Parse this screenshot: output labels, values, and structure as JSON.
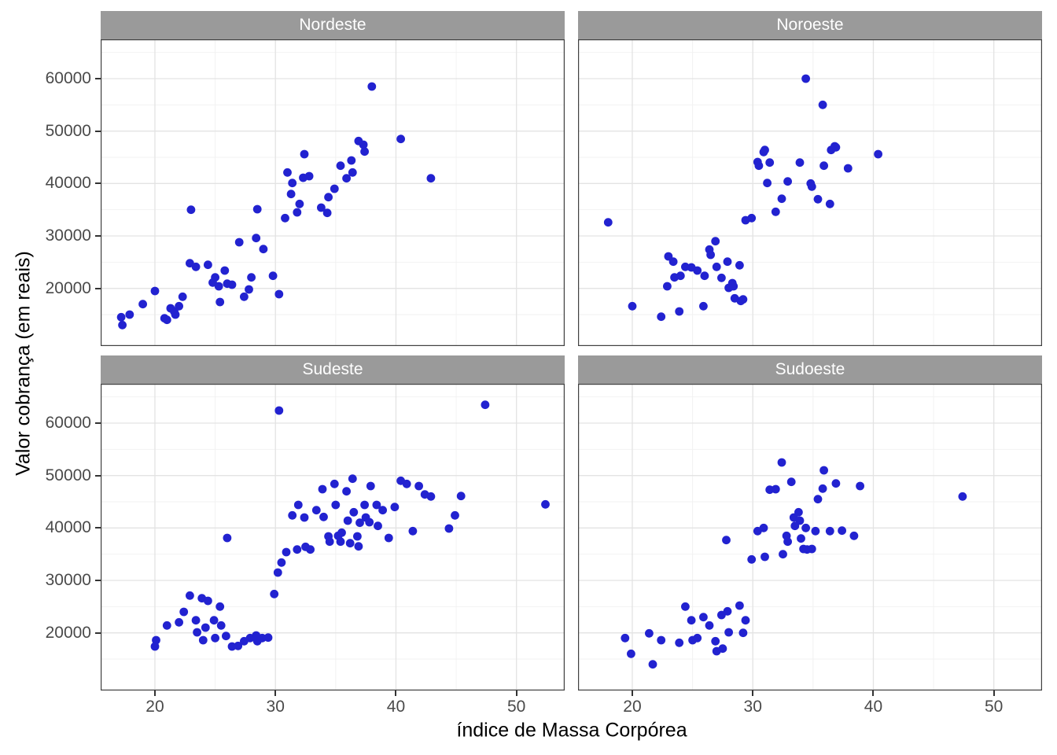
{
  "chart_data": {
    "type": "scatter",
    "title": "",
    "xlabel": "índice de Massa Corpórea",
    "ylabel": "Valor cobrança (em reais)",
    "xlim": [
      15.5,
      54
    ],
    "ylim": [
      9000,
      67500
    ],
    "x_ticks": [
      20,
      30,
      40,
      50
    ],
    "y_ticks": [
      20000,
      30000,
      40000,
      50000,
      60000
    ],
    "legend": "none",
    "grid": "on",
    "point_color": "#2222D0",
    "strip_fill": "#9A9A9A",
    "strip_text_color": "#FFFFFF",
    "panel_bg": "#FFFFFF",
    "panel_border": "#404040",
    "grid_major": "#E3E3E3",
    "grid_minor": "#F2F2F2",
    "facets": [
      {
        "label": "Nordeste",
        "points": [
          [
            17.2,
            14500
          ],
          [
            17.3,
            13000
          ],
          [
            17.9,
            15000
          ],
          [
            19,
            17000
          ],
          [
            20,
            19500
          ],
          [
            20.8,
            14300
          ],
          [
            21,
            14000
          ],
          [
            21.3,
            16200
          ],
          [
            21.6,
            15600
          ],
          [
            21.7,
            15000
          ],
          [
            22,
            16600
          ],
          [
            22.3,
            18400
          ],
          [
            22.9,
            24800
          ],
          [
            23,
            35000
          ],
          [
            23.4,
            24100
          ],
          [
            24.4,
            24500
          ],
          [
            24.8,
            21100
          ],
          [
            25,
            22100
          ],
          [
            25.3,
            20400
          ],
          [
            25.4,
            17400
          ],
          [
            25.8,
            23400
          ],
          [
            26,
            20900
          ],
          [
            26.4,
            20700
          ],
          [
            27,
            28800
          ],
          [
            27.4,
            18400
          ],
          [
            27.8,
            19800
          ],
          [
            28,
            22100
          ],
          [
            28.4,
            29600
          ],
          [
            28.5,
            35100
          ],
          [
            29,
            27500
          ],
          [
            29.8,
            22400
          ],
          [
            30.3,
            18900
          ],
          [
            30.8,
            33400
          ],
          [
            31,
            42100
          ],
          [
            31.3,
            38000
          ],
          [
            31.4,
            40100
          ],
          [
            31.8,
            34500
          ],
          [
            32,
            36100
          ],
          [
            32.3,
            41100
          ],
          [
            32.4,
            45600
          ],
          [
            32.8,
            41400
          ],
          [
            33.8,
            35400
          ],
          [
            34.3,
            34400
          ],
          [
            34.4,
            37400
          ],
          [
            34.9,
            39000
          ],
          [
            35.4,
            43400
          ],
          [
            35.9,
            41000
          ],
          [
            36.3,
            44400
          ],
          [
            36.4,
            42100
          ],
          [
            36.9,
            48100
          ],
          [
            37.3,
            47400
          ],
          [
            37.4,
            46100
          ],
          [
            38,
            58500
          ],
          [
            40.4,
            48500
          ],
          [
            42.9,
            41000
          ]
        ]
      },
      {
        "label": "Noroeste",
        "points": [
          [
            18,
            32600
          ],
          [
            20,
            16600
          ],
          [
            22.4,
            14600
          ],
          [
            22.9,
            20400
          ],
          [
            23,
            26100
          ],
          [
            23.4,
            25100
          ],
          [
            23.5,
            22100
          ],
          [
            23.9,
            15600
          ],
          [
            24,
            22400
          ],
          [
            24.4,
            24100
          ],
          [
            24.9,
            24000
          ],
          [
            25.4,
            23400
          ],
          [
            25.9,
            16600
          ],
          [
            26,
            22400
          ],
          [
            26.4,
            27400
          ],
          [
            26.5,
            26400
          ],
          [
            26.9,
            29000
          ],
          [
            27,
            24100
          ],
          [
            27.4,
            22000
          ],
          [
            27.9,
            25100
          ],
          [
            28,
            20100
          ],
          [
            28.3,
            21000
          ],
          [
            28.4,
            20400
          ],
          [
            28.5,
            18100
          ],
          [
            28.9,
            24400
          ],
          [
            29,
            17600
          ],
          [
            29.2,
            17900
          ],
          [
            29.4,
            33000
          ],
          [
            29.9,
            33400
          ],
          [
            30.4,
            44100
          ],
          [
            30.5,
            43400
          ],
          [
            30.9,
            46000
          ],
          [
            31,
            46400
          ],
          [
            31.2,
            40100
          ],
          [
            31.4,
            44000
          ],
          [
            31.9,
            34600
          ],
          [
            32.4,
            37100
          ],
          [
            32.9,
            40400
          ],
          [
            33.9,
            44000
          ],
          [
            34.4,
            60000
          ],
          [
            34.8,
            40000
          ],
          [
            34.9,
            39400
          ],
          [
            35.4,
            37000
          ],
          [
            35.8,
            55000
          ],
          [
            35.9,
            43400
          ],
          [
            36.4,
            36100
          ],
          [
            36.5,
            46400
          ],
          [
            36.8,
            47100
          ],
          [
            36.9,
            46900
          ],
          [
            37.9,
            42900
          ],
          [
            40.4,
            45600
          ]
        ]
      },
      {
        "label": "Sudeste",
        "points": [
          [
            20,
            17400
          ],
          [
            20.1,
            18600
          ],
          [
            21,
            21400
          ],
          [
            22,
            22000
          ],
          [
            22.4,
            24000
          ],
          [
            22.9,
            27100
          ],
          [
            23.4,
            22400
          ],
          [
            23.5,
            20100
          ],
          [
            23.9,
            26600
          ],
          [
            24,
            18600
          ],
          [
            24.2,
            21000
          ],
          [
            24.4,
            26100
          ],
          [
            24.9,
            22400
          ],
          [
            25,
            19000
          ],
          [
            25.4,
            25000
          ],
          [
            25.5,
            21400
          ],
          [
            25.9,
            19400
          ],
          [
            26,
            38100
          ],
          [
            26.4,
            17400
          ],
          [
            26.9,
            17500
          ],
          [
            27.4,
            18400
          ],
          [
            27.9,
            19000
          ],
          [
            28.4,
            19500
          ],
          [
            28.5,
            18400
          ],
          [
            28.9,
            19000
          ],
          [
            29.4,
            19100
          ],
          [
            29.9,
            27400
          ],
          [
            30.2,
            31500
          ],
          [
            30.3,
            62400
          ],
          [
            30.5,
            33400
          ],
          [
            30.9,
            35400
          ],
          [
            31.4,
            42400
          ],
          [
            31.8,
            35900
          ],
          [
            31.9,
            44400
          ],
          [
            32.4,
            42000
          ],
          [
            32.5,
            36400
          ],
          [
            32.9,
            35900
          ],
          [
            33.4,
            43400
          ],
          [
            33.9,
            47400
          ],
          [
            34,
            42100
          ],
          [
            34.4,
            38400
          ],
          [
            34.5,
            37400
          ],
          [
            34.9,
            48400
          ],
          [
            35,
            44400
          ],
          [
            35.2,
            38500
          ],
          [
            35.4,
            37400
          ],
          [
            35.5,
            39100
          ],
          [
            35.9,
            47000
          ],
          [
            36,
            41400
          ],
          [
            36.2,
            37100
          ],
          [
            36.4,
            49400
          ],
          [
            36.5,
            43000
          ],
          [
            36.8,
            38400
          ],
          [
            36.9,
            36500
          ],
          [
            37,
            41000
          ],
          [
            37.4,
            44400
          ],
          [
            37.5,
            42000
          ],
          [
            37.8,
            41100
          ],
          [
            37.9,
            48000
          ],
          [
            38.4,
            44400
          ],
          [
            38.5,
            40400
          ],
          [
            38.9,
            43400
          ],
          [
            39.4,
            38100
          ],
          [
            39.9,
            44000
          ],
          [
            40.4,
            49000
          ],
          [
            40.9,
            48400
          ],
          [
            41.4,
            39400
          ],
          [
            41.9,
            48000
          ],
          [
            42.4,
            46400
          ],
          [
            42.9,
            46000
          ],
          [
            44.4,
            39900
          ],
          [
            44.9,
            42400
          ],
          [
            45.4,
            46100
          ],
          [
            47.4,
            63500
          ],
          [
            52.4,
            44500
          ]
        ]
      },
      {
        "label": "Sudoeste",
        "points": [
          [
            19.4,
            19000
          ],
          [
            19.9,
            16000
          ],
          [
            21.4,
            19900
          ],
          [
            21.7,
            14000
          ],
          [
            22.4,
            18600
          ],
          [
            23.9,
            18100
          ],
          [
            24.4,
            25000
          ],
          [
            24.9,
            22400
          ],
          [
            25,
            18600
          ],
          [
            25.4,
            19000
          ],
          [
            25.9,
            23000
          ],
          [
            26.4,
            21400
          ],
          [
            26.9,
            18400
          ],
          [
            27,
            16500
          ],
          [
            27.4,
            23400
          ],
          [
            27.5,
            17000
          ],
          [
            27.8,
            37700
          ],
          [
            27.9,
            24100
          ],
          [
            28,
            20100
          ],
          [
            28.9,
            25200
          ],
          [
            29.2,
            20000
          ],
          [
            29.4,
            22400
          ],
          [
            29.9,
            34000
          ],
          [
            30.4,
            39400
          ],
          [
            30.9,
            40000
          ],
          [
            31,
            34500
          ],
          [
            31.4,
            47300
          ],
          [
            31.9,
            47400
          ],
          [
            32.4,
            52500
          ],
          [
            32.5,
            35000
          ],
          [
            32.8,
            38500
          ],
          [
            32.9,
            37400
          ],
          [
            33.2,
            48800
          ],
          [
            33.4,
            42000
          ],
          [
            33.5,
            40400
          ],
          [
            33.8,
            43000
          ],
          [
            33.9,
            41400
          ],
          [
            34,
            38000
          ],
          [
            34.2,
            36000
          ],
          [
            34.4,
            40000
          ],
          [
            34.5,
            35900
          ],
          [
            34.9,
            36000
          ],
          [
            35.2,
            39400
          ],
          [
            35.4,
            45500
          ],
          [
            35.8,
            47500
          ],
          [
            35.9,
            51000
          ],
          [
            36.4,
            39400
          ],
          [
            36.9,
            48500
          ],
          [
            37.4,
            39500
          ],
          [
            38.4,
            38500
          ],
          [
            38.9,
            48000
          ],
          [
            47.4,
            46000
          ]
        ]
      }
    ]
  }
}
